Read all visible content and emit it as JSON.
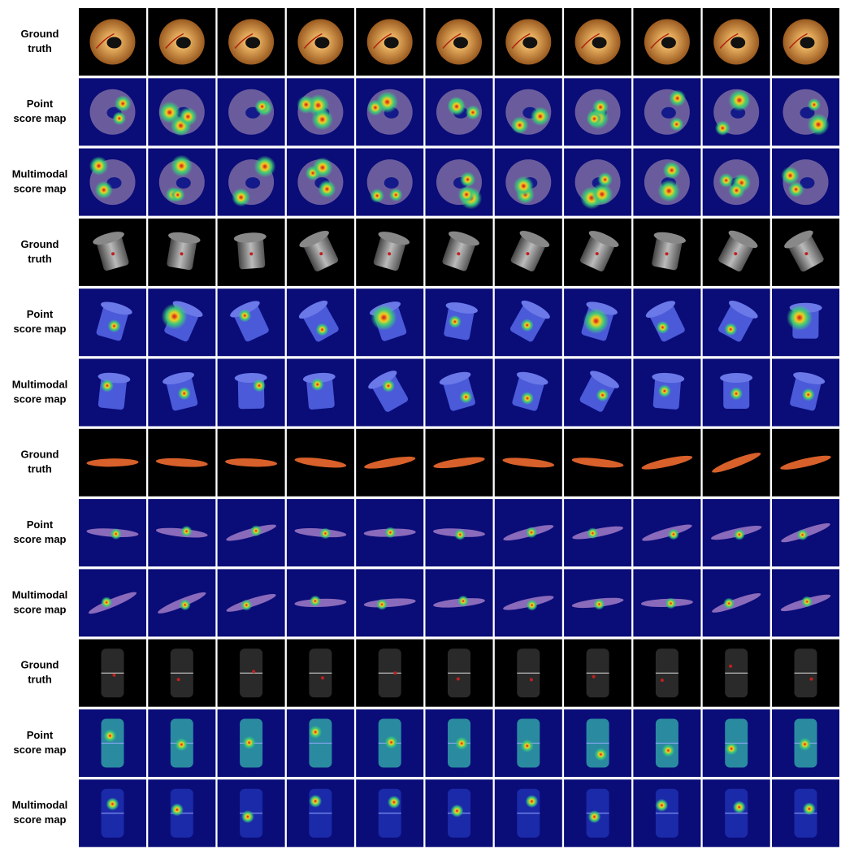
{
  "rows": [
    {
      "lines": [
        "Ground",
        "truth"
      ]
    },
    {
      "lines": [
        "Point",
        "score map"
      ]
    },
    {
      "lines": [
        "Multimodal",
        "score map"
      ]
    },
    {
      "lines": [
        "Ground",
        "truth"
      ]
    },
    {
      "lines": [
        "Point",
        "score map"
      ]
    },
    {
      "lines": [
        "Multimodal",
        "score map"
      ]
    },
    {
      "lines": [
        "Ground",
        "truth"
      ]
    },
    {
      "lines": [
        "Point",
        "score map"
      ]
    },
    {
      "lines": [
        "Multimodal",
        "score map"
      ]
    },
    {
      "lines": [
        "Ground",
        "truth"
      ]
    },
    {
      "lines": [
        "Point",
        "score map"
      ]
    },
    {
      "lines": [
        "Multimodal",
        "score map"
      ]
    }
  ]
}
